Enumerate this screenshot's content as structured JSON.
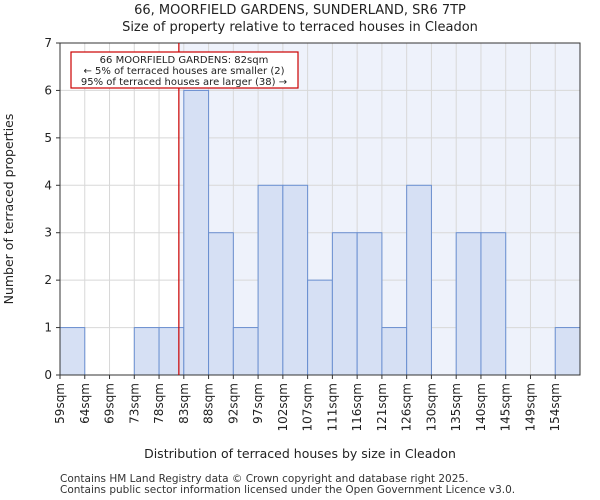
{
  "chart_data": {
    "type": "bar",
    "title": "66, MOORFIELD GARDENS, SUNDERLAND, SR6 7TP",
    "subtitle": "Size of property relative to terraced houses in Cleadon",
    "xlabel": "Distribution of terraced houses by size in Cleadon",
    "ylabel": "Number of terraced properties",
    "ylim": [
      0,
      7
    ],
    "yticks": [
      0,
      1,
      2,
      3,
      4,
      5,
      6,
      7
    ],
    "tick_labels": [
      "59sqm",
      "64sqm",
      "69sqm",
      "73sqm",
      "78sqm",
      "83sqm",
      "88sqm",
      "92sqm",
      "97sqm",
      "102sqm",
      "107sqm",
      "111sqm",
      "116sqm",
      "121sqm",
      "126sqm",
      "130sqm",
      "135sqm",
      "140sqm",
      "145sqm",
      "149sqm",
      "154sqm"
    ],
    "tick_values": [
      59,
      64,
      69,
      73,
      78,
      83,
      88,
      92,
      97,
      102,
      107,
      111,
      116,
      121,
      126,
      130,
      135,
      140,
      145,
      149,
      154
    ],
    "values": [
      1,
      0,
      0,
      1,
      1,
      6,
      3,
      1,
      4,
      4,
      2,
      3,
      3,
      1,
      4,
      0,
      3,
      3,
      0,
      0,
      1
    ],
    "grid": true,
    "marker": {
      "value": 82,
      "color": "#cc0000"
    },
    "annotation": [
      "66 MOORFIELD GARDENS: 82sqm",
      "← 5% of terraced houses are smaller (2)",
      "95% of terraced houses are larger (38) →"
    ],
    "colors": {
      "bar": "#d6e0f4",
      "bar_edge": "#6a8fd0",
      "shade": "#eef2fb"
    }
  },
  "footer": [
    "Contains HM Land Registry data © Crown copyright and database right 2025.",
    "Contains public sector information licensed under the Open Government Licence v3.0."
  ]
}
